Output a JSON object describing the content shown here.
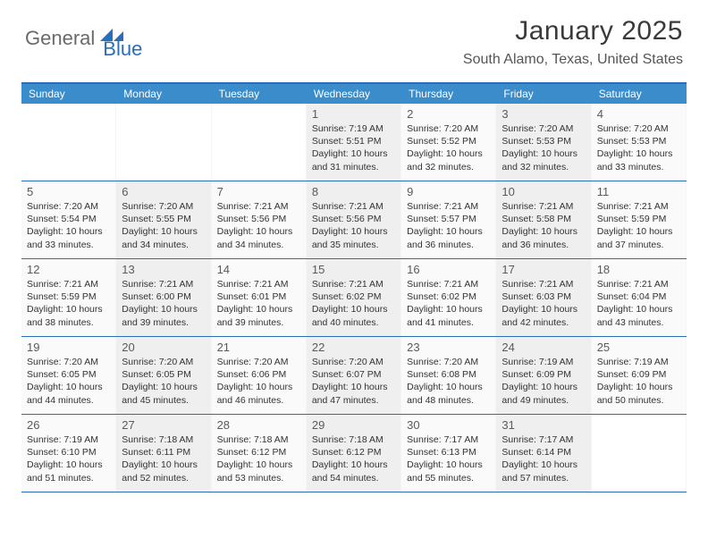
{
  "logo": {
    "text1": "General",
    "text2": "Blue"
  },
  "title": "January 2025",
  "location": "South Alamo, Texas, United States",
  "colors": {
    "header_bar": "#3b8ccb",
    "border": "#2a6db8",
    "alt_row": "#efefef",
    "bg": "#fafafa",
    "text": "#333333"
  },
  "daynames": [
    "Sunday",
    "Monday",
    "Tuesday",
    "Wednesday",
    "Thursday",
    "Friday",
    "Saturday"
  ],
  "cell_label_prefixes": {
    "sunrise": "Sunrise: ",
    "sunset": "Sunset: ",
    "daylight": "Daylight: "
  },
  "weeks": [
    [
      {
        "blank": true
      },
      {
        "blank": true
      },
      {
        "blank": true
      },
      {
        "day": 1,
        "sunrise": "7:19 AM",
        "sunset": "5:51 PM",
        "daylight": "10 hours and 31 minutes."
      },
      {
        "day": 2,
        "sunrise": "7:20 AM",
        "sunset": "5:52 PM",
        "daylight": "10 hours and 32 minutes."
      },
      {
        "day": 3,
        "sunrise": "7:20 AM",
        "sunset": "5:53 PM",
        "daylight": "10 hours and 32 minutes."
      },
      {
        "day": 4,
        "sunrise": "7:20 AM",
        "sunset": "5:53 PM",
        "daylight": "10 hours and 33 minutes."
      }
    ],
    [
      {
        "day": 5,
        "sunrise": "7:20 AM",
        "sunset": "5:54 PM",
        "daylight": "10 hours and 33 minutes."
      },
      {
        "day": 6,
        "sunrise": "7:20 AM",
        "sunset": "5:55 PM",
        "daylight": "10 hours and 34 minutes."
      },
      {
        "day": 7,
        "sunrise": "7:21 AM",
        "sunset": "5:56 PM",
        "daylight": "10 hours and 34 minutes."
      },
      {
        "day": 8,
        "sunrise": "7:21 AM",
        "sunset": "5:56 PM",
        "daylight": "10 hours and 35 minutes."
      },
      {
        "day": 9,
        "sunrise": "7:21 AM",
        "sunset": "5:57 PM",
        "daylight": "10 hours and 36 minutes."
      },
      {
        "day": 10,
        "sunrise": "7:21 AM",
        "sunset": "5:58 PM",
        "daylight": "10 hours and 36 minutes."
      },
      {
        "day": 11,
        "sunrise": "7:21 AM",
        "sunset": "5:59 PM",
        "daylight": "10 hours and 37 minutes."
      }
    ],
    [
      {
        "day": 12,
        "sunrise": "7:21 AM",
        "sunset": "5:59 PM",
        "daylight": "10 hours and 38 minutes."
      },
      {
        "day": 13,
        "sunrise": "7:21 AM",
        "sunset": "6:00 PM",
        "daylight": "10 hours and 39 minutes."
      },
      {
        "day": 14,
        "sunrise": "7:21 AM",
        "sunset": "6:01 PM",
        "daylight": "10 hours and 39 minutes."
      },
      {
        "day": 15,
        "sunrise": "7:21 AM",
        "sunset": "6:02 PM",
        "daylight": "10 hours and 40 minutes."
      },
      {
        "day": 16,
        "sunrise": "7:21 AM",
        "sunset": "6:02 PM",
        "daylight": "10 hours and 41 minutes."
      },
      {
        "day": 17,
        "sunrise": "7:21 AM",
        "sunset": "6:03 PM",
        "daylight": "10 hours and 42 minutes."
      },
      {
        "day": 18,
        "sunrise": "7:21 AM",
        "sunset": "6:04 PM",
        "daylight": "10 hours and 43 minutes."
      }
    ],
    [
      {
        "day": 19,
        "sunrise": "7:20 AM",
        "sunset": "6:05 PM",
        "daylight": "10 hours and 44 minutes."
      },
      {
        "day": 20,
        "sunrise": "7:20 AM",
        "sunset": "6:05 PM",
        "daylight": "10 hours and 45 minutes."
      },
      {
        "day": 21,
        "sunrise": "7:20 AM",
        "sunset": "6:06 PM",
        "daylight": "10 hours and 46 minutes."
      },
      {
        "day": 22,
        "sunrise": "7:20 AM",
        "sunset": "6:07 PM",
        "daylight": "10 hours and 47 minutes."
      },
      {
        "day": 23,
        "sunrise": "7:20 AM",
        "sunset": "6:08 PM",
        "daylight": "10 hours and 48 minutes."
      },
      {
        "day": 24,
        "sunrise": "7:19 AM",
        "sunset": "6:09 PM",
        "daylight": "10 hours and 49 minutes."
      },
      {
        "day": 25,
        "sunrise": "7:19 AM",
        "sunset": "6:09 PM",
        "daylight": "10 hours and 50 minutes."
      }
    ],
    [
      {
        "day": 26,
        "sunrise": "7:19 AM",
        "sunset": "6:10 PM",
        "daylight": "10 hours and 51 minutes."
      },
      {
        "day": 27,
        "sunrise": "7:18 AM",
        "sunset": "6:11 PM",
        "daylight": "10 hours and 52 minutes."
      },
      {
        "day": 28,
        "sunrise": "7:18 AM",
        "sunset": "6:12 PM",
        "daylight": "10 hours and 53 minutes."
      },
      {
        "day": 29,
        "sunrise": "7:18 AM",
        "sunset": "6:12 PM",
        "daylight": "10 hours and 54 minutes."
      },
      {
        "day": 30,
        "sunrise": "7:17 AM",
        "sunset": "6:13 PM",
        "daylight": "10 hours and 55 minutes."
      },
      {
        "day": 31,
        "sunrise": "7:17 AM",
        "sunset": "6:14 PM",
        "daylight": "10 hours and 57 minutes."
      },
      {
        "blank": true
      }
    ]
  ]
}
